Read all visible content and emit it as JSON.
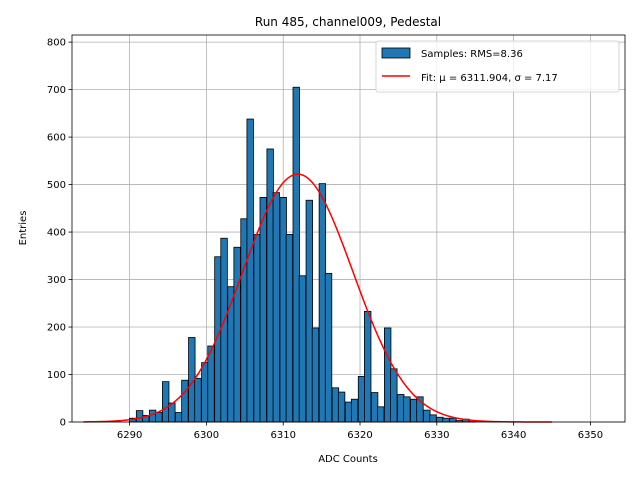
{
  "chart_data": {
    "type": "bar",
    "title": "Run 485, channel009, Pedestal",
    "xlabel": "ADC Counts",
    "ylabel": "Entries",
    "xlim": [
      6282.5,
      6354.5
    ],
    "ylim": [
      0,
      815
    ],
    "xticks": [
      6290,
      6300,
      6310,
      6320,
      6330,
      6340,
      6350
    ],
    "yticks": [
      0,
      100,
      200,
      300,
      400,
      500,
      600,
      700,
      800
    ],
    "grid": true,
    "legend": {
      "placement": "top-right"
    },
    "colors": {
      "bars": "#1f77b4",
      "bar_edge": "#000000",
      "fit": "#ff0000",
      "grid": "#b0b0b0"
    },
    "histogram": {
      "name": "Samples: RMS=8.36",
      "bin_width": 0.85,
      "bins": [
        {
          "x": 6290.4,
          "y": 8
        },
        {
          "x": 6291.3,
          "y": 24
        },
        {
          "x": 6292.1,
          "y": 14
        },
        {
          "x": 6293.0,
          "y": 25
        },
        {
          "x": 6293.8,
          "y": 20
        },
        {
          "x": 6294.7,
          "y": 85
        },
        {
          "x": 6295.5,
          "y": 40
        },
        {
          "x": 6296.4,
          "y": 20
        },
        {
          "x": 6297.2,
          "y": 88
        },
        {
          "x": 6298.1,
          "y": 178
        },
        {
          "x": 6298.9,
          "y": 92
        },
        {
          "x": 6299.8,
          "y": 125
        },
        {
          "x": 6300.6,
          "y": 160
        },
        {
          "x": 6301.5,
          "y": 348
        },
        {
          "x": 6302.3,
          "y": 387
        },
        {
          "x": 6303.2,
          "y": 285
        },
        {
          "x": 6304.0,
          "y": 368
        },
        {
          "x": 6304.9,
          "y": 428
        },
        {
          "x": 6305.7,
          "y": 638
        },
        {
          "x": 6306.6,
          "y": 395
        },
        {
          "x": 6307.4,
          "y": 473
        },
        {
          "x": 6308.3,
          "y": 575
        },
        {
          "x": 6309.1,
          "y": 483
        },
        {
          "x": 6310.0,
          "y": 473
        },
        {
          "x": 6310.8,
          "y": 395
        },
        {
          "x": 6311.7,
          "y": 705
        },
        {
          "x": 6312.5,
          "y": 308
        },
        {
          "x": 6313.4,
          "y": 467
        },
        {
          "x": 6314.2,
          "y": 198
        },
        {
          "x": 6315.1,
          "y": 502
        },
        {
          "x": 6315.9,
          "y": 313
        },
        {
          "x": 6316.8,
          "y": 72
        },
        {
          "x": 6317.6,
          "y": 63
        },
        {
          "x": 6318.5,
          "y": 42
        },
        {
          "x": 6319.3,
          "y": 48
        },
        {
          "x": 6320.2,
          "y": 96
        },
        {
          "x": 6321.0,
          "y": 233
        },
        {
          "x": 6321.9,
          "y": 62
        },
        {
          "x": 6322.7,
          "y": 32
        },
        {
          "x": 6323.6,
          "y": 198
        },
        {
          "x": 6324.4,
          "y": 112
        },
        {
          "x": 6325.3,
          "y": 58
        },
        {
          "x": 6326.1,
          "y": 53
        },
        {
          "x": 6327.0,
          "y": 48
        },
        {
          "x": 6327.8,
          "y": 53
        },
        {
          "x": 6328.7,
          "y": 25
        },
        {
          "x": 6329.5,
          "y": 15
        },
        {
          "x": 6330.4,
          "y": 10
        },
        {
          "x": 6331.2,
          "y": 8
        },
        {
          "x": 6332.1,
          "y": 8
        },
        {
          "x": 6332.9,
          "y": 3
        },
        {
          "x": 6333.8,
          "y": 6
        },
        {
          "x": 6334.6,
          "y": 3
        }
      ]
    },
    "fit": {
      "name": "Fit: μ = 6311.904, σ = 7.17",
      "mu": 6311.904,
      "sigma": 7.17,
      "amplitude": 522,
      "x_range": [
        6284,
        6345
      ]
    }
  }
}
